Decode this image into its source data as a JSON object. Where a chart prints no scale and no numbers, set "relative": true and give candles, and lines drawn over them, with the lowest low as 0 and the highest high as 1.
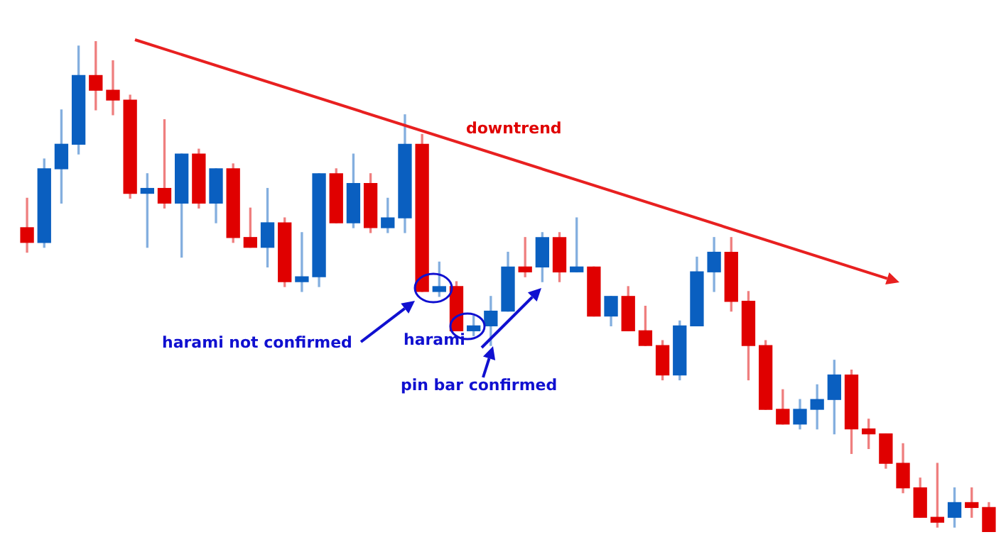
{
  "chart_data": {
    "type": "candlestick",
    "relative": true,
    "categories": [
      null,
      null,
      null,
      null,
      null,
      null,
      null,
      null,
      null,
      null,
      null,
      null,
      null,
      null,
      null,
      null,
      null,
      null,
      null,
      null,
      null,
      null,
      null,
      null,
      null,
      null,
      null,
      null,
      null,
      null,
      null,
      null,
      null,
      null,
      null,
      null,
      null,
      null,
      null,
      null,
      null,
      null,
      null,
      null,
      null,
      null,
      null,
      null,
      null,
      null,
      null,
      null,
      null,
      null,
      null,
      null,
      null
    ],
    "ohlc": [
      [
        0.62,
        0.68,
        0.57,
        0.59
      ],
      [
        0.59,
        0.76,
        0.58,
        0.74
      ],
      [
        0.74,
        0.86,
        0.67,
        0.79
      ],
      [
        0.79,
        0.99,
        0.77,
        0.93
      ],
      [
        0.93,
        1.0,
        0.86,
        0.9
      ],
      [
        0.9,
        0.96,
        0.85,
        0.88
      ],
      [
        0.88,
        0.89,
        0.68,
        0.69
      ],
      [
        0.69,
        0.73,
        0.58,
        0.7
      ],
      [
        0.7,
        0.84,
        0.66,
        0.67
      ],
      [
        0.67,
        0.77,
        0.56,
        0.77
      ],
      [
        0.77,
        0.78,
        0.66,
        0.67
      ],
      [
        0.67,
        0.74,
        0.63,
        0.74
      ],
      [
        0.74,
        0.75,
        0.59,
        0.6
      ],
      [
        0.6,
        0.66,
        0.58,
        0.58
      ],
      [
        0.58,
        0.7,
        0.54,
        0.63
      ],
      [
        0.63,
        0.64,
        0.5,
        0.51
      ],
      [
        0.51,
        0.61,
        0.49,
        0.52
      ],
      [
        0.52,
        0.73,
        0.5,
        0.73
      ],
      [
        0.73,
        0.74,
        0.63,
        0.63
      ],
      [
        0.63,
        0.77,
        0.62,
        0.71
      ],
      [
        0.71,
        0.73,
        0.61,
        0.62
      ],
      [
        0.62,
        0.68,
        0.61,
        0.64
      ],
      [
        0.64,
        0.85,
        0.61,
        0.79
      ],
      [
        0.79,
        0.81,
        0.49,
        0.49
      ],
      [
        0.49,
        0.55,
        0.48,
        0.5
      ],
      [
        0.5,
        0.51,
        0.41,
        0.41
      ],
      [
        0.41,
        0.44,
        0.4,
        0.42
      ],
      [
        0.42,
        0.48,
        0.38,
        0.45
      ],
      [
        0.45,
        0.57,
        0.45,
        0.54
      ],
      [
        0.54,
        0.6,
        0.52,
        0.53
      ],
      [
        0.54,
        0.61,
        0.51,
        0.6
      ],
      [
        0.6,
        0.61,
        0.51,
        0.53
      ],
      [
        0.53,
        0.64,
        0.53,
        0.54
      ],
      [
        0.54,
        0.54,
        0.44,
        0.44
      ],
      [
        0.44,
        0.48,
        0.42,
        0.48
      ],
      [
        0.48,
        0.5,
        0.41,
        0.41
      ],
      [
        0.41,
        0.46,
        0.38,
        0.38
      ],
      [
        0.38,
        0.39,
        0.31,
        0.32
      ],
      [
        0.32,
        0.43,
        0.31,
        0.42
      ],
      [
        0.42,
        0.56,
        0.42,
        0.53
      ],
      [
        0.53,
        0.6,
        0.49,
        0.57
      ],
      [
        0.57,
        0.6,
        0.45,
        0.47
      ],
      [
        0.47,
        0.49,
        0.31,
        0.38
      ],
      [
        0.38,
        0.39,
        0.25,
        0.25
      ],
      [
        0.25,
        0.29,
        0.22,
        0.22
      ],
      [
        0.22,
        0.27,
        0.21,
        0.25
      ],
      [
        0.25,
        0.3,
        0.21,
        0.27
      ],
      [
        0.27,
        0.35,
        0.2,
        0.32
      ],
      [
        0.32,
        0.33,
        0.16,
        0.21
      ],
      [
        0.21,
        0.23,
        0.17,
        0.2
      ],
      [
        0.2,
        0.2,
        0.13,
        0.14
      ],
      [
        0.14,
        0.18,
        0.08,
        0.09
      ],
      [
        0.09,
        0.11,
        0.03,
        0.03
      ],
      [
        0.03,
        0.14,
        0.01,
        0.02
      ],
      [
        0.03,
        0.09,
        0.01,
        0.06
      ],
      [
        0.06,
        0.09,
        0.03,
        0.05
      ],
      [
        0.05,
        0.06,
        0.0,
        0.0
      ]
    ],
    "colors": [
      "#e00000",
      "#0a5fc0",
      "#0a5fc0",
      "#0a5fc0",
      "#e00000",
      "#e00000",
      "#e00000",
      "#0a5fc0",
      "#e00000",
      "#0a5fc0",
      "#e00000",
      "#0a5fc0",
      "#e00000",
      "#e00000",
      "#0a5fc0",
      "#e00000",
      "#0a5fc0",
      "#0a5fc0",
      "#e00000",
      "#0a5fc0",
      "#e00000",
      "#0a5fc0",
      "#0a5fc0",
      "#e00000",
      "#0a5fc0",
      "#e00000",
      "#0a5fc0",
      "#0a5fc0",
      "#0a5fc0",
      "#e00000",
      "#0a5fc0",
      "#e00000",
      "#0a5fc0",
      "#e00000",
      "#0a5fc0",
      "#e00000",
      "#e00000",
      "#e00000",
      "#0a5fc0",
      "#0a5fc0",
      "#0a5fc0",
      "#e00000",
      "#e00000",
      "#e00000",
      "#e00000",
      "#0a5fc0",
      "#0a5fc0",
      "#0a5fc0",
      "#e00000",
      "#e00000",
      "#e00000",
      "#e00000",
      "#e00000",
      "#e00000",
      "#0a5fc0",
      "#e00000",
      "#e00000"
    ],
    "annotations": [
      "downtrend",
      "harami not confirmed",
      "harami",
      "pin bar confirmed"
    ],
    "legend": false,
    "tick_labels": false
  }
}
